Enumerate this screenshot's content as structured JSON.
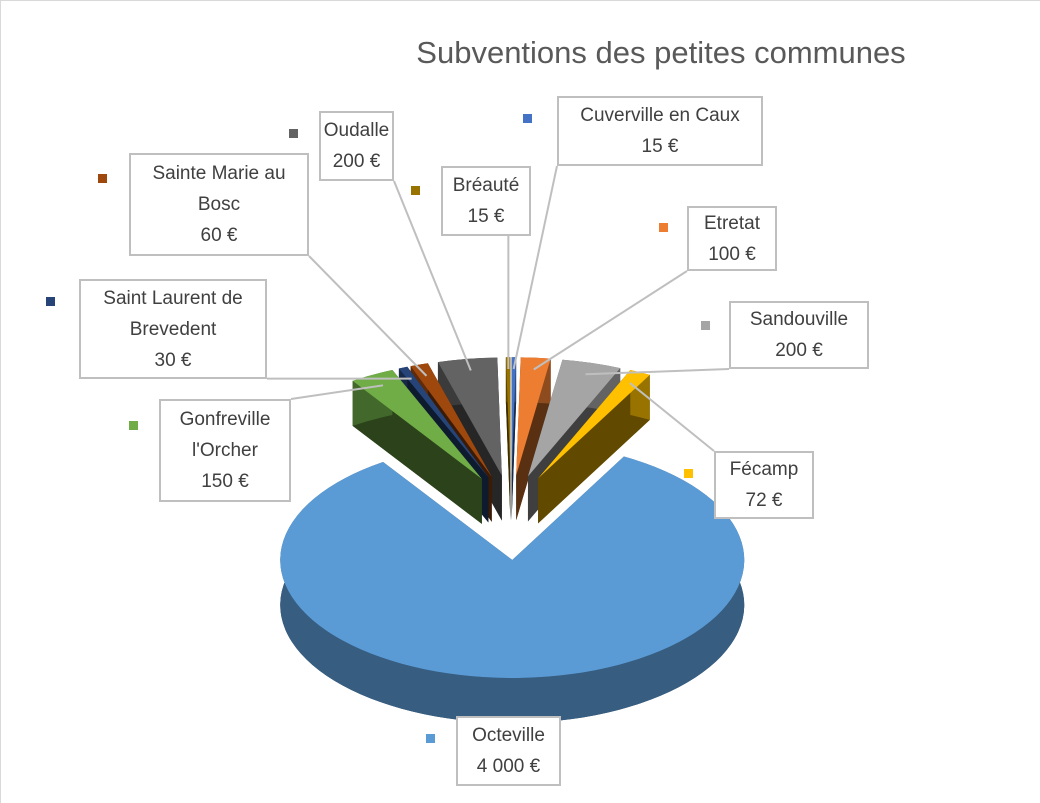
{
  "chart_data": {
    "type": "pie",
    "title": "Subventions des petites communes",
    "categories": [
      "Cuverville en Caux",
      "Etretat",
      "Sandouville",
      "Fécamp",
      "Octeville",
      "Gonfreville l'Orcher",
      "Saint Laurent de Brevedent",
      "Sainte Marie au Bosc",
      "Oudalle",
      "Bréauté"
    ],
    "values": [
      15,
      100,
      200,
      72,
      4000,
      150,
      30,
      60,
      200,
      15
    ],
    "value_labels": [
      "15 €",
      "100 €",
      "200 €",
      "72 €",
      "4 000 €",
      "150 €",
      "30 €",
      "60 €",
      "200 €",
      "15 €"
    ],
    "colors": [
      "#4472c4",
      "#ed7d31",
      "#a5a5a5",
      "#ffc000",
      "#5b9bd5",
      "#70ad47",
      "#264478",
      "#9e480e",
      "#636363",
      "#997300"
    ]
  }
}
